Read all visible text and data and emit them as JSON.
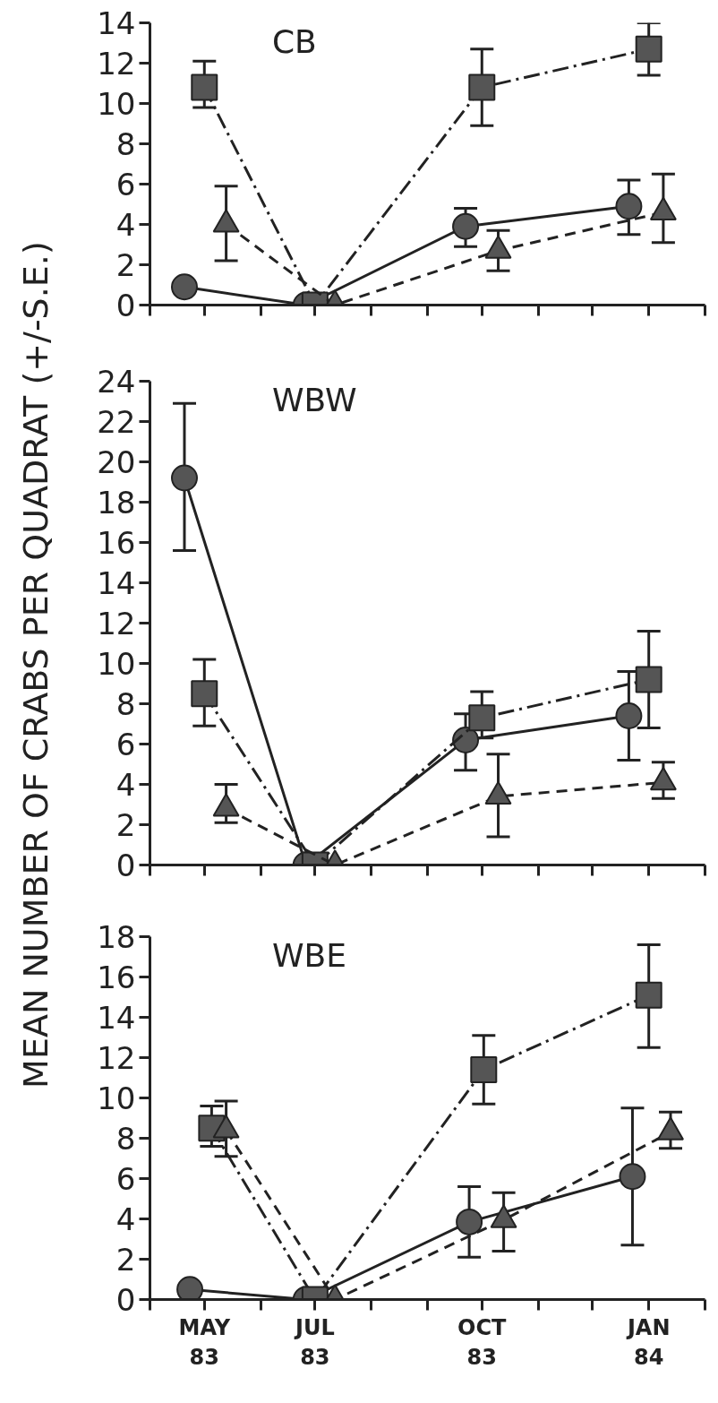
{
  "chart_data": [
    {
      "type": "line",
      "title": "CB",
      "xlim": [
        "1983-04-01",
        "1984-02-01"
      ],
      "ylim": [
        0,
        14
      ],
      "yticks": [
        0,
        2,
        4,
        6,
        8,
        10,
        12,
        14
      ],
      "xticks": [
        {
          "value": "1983-04-01",
          "label": null
        },
        {
          "value": "1983-05-01",
          "label": null
        },
        {
          "value": "1983-06-01",
          "label": null
        },
        {
          "value": "1983-07-01",
          "label": null
        },
        {
          "value": "1983-08-01",
          "label": null
        },
        {
          "value": "1983-09-01",
          "label": null
        },
        {
          "value": "1983-10-01",
          "label": null
        },
        {
          "value": "1983-11-01",
          "label": null
        },
        {
          "value": "1983-12-01",
          "label": null
        },
        {
          "value": "1984-01-01",
          "label": null
        },
        {
          "value": "1984-02-01",
          "label": null
        }
      ],
      "tick_labels": "y",
      "grid": false,
      "series": [
        {
          "color": "#555555",
          "marker": "circle",
          "line_style": "solid",
          "x": [
            "1983-04-20",
            "1983-06-26",
            "1983-09-22",
            "1983-12-21"
          ],
          "values": [
            0.9,
            0,
            3.9,
            4.9
          ],
          "errors": [
            null,
            null,
            [
              2.9,
              4.8
            ],
            [
              3.5,
              6.2
            ]
          ]
        },
        {
          "color": "#555555",
          "marker": "square",
          "line_style": "dashdot",
          "x": [
            "1983-05-01",
            "1983-07-01",
            "1983-10-01",
            "1984-01-01"
          ],
          "values": [
            10.8,
            0,
            10.8,
            12.7
          ],
          "errors": [
            [
              9.8,
              12.1
            ],
            null,
            [
              8.9,
              12.7
            ],
            [
              11.4,
              14.0
            ]
          ]
        },
        {
          "color": "#555555",
          "marker": "triangle",
          "line_style": "dashed",
          "x": [
            "1983-05-13",
            "1983-07-12",
            "1983-10-10",
            "1984-01-09"
          ],
          "values": [
            4.0,
            0,
            2.7,
            4.6
          ],
          "errors": [
            [
              2.2,
              5.9
            ],
            null,
            [
              1.7,
              3.7
            ],
            [
              3.1,
              6.5
            ]
          ]
        }
      ]
    },
    {
      "type": "line",
      "title": "WBW",
      "ylabel": "MEAN NUMBER OF CRABS PER QUADRAT (+/-S.E.)",
      "xlim": [
        "1983-04-01",
        "1984-02-01"
      ],
      "ylim": [
        0,
        24
      ],
      "yticks": [
        0,
        2,
        4,
        6,
        8,
        10,
        12,
        14,
        16,
        18,
        20,
        22,
        24
      ],
      "xticks": [
        {
          "value": "1983-04-01",
          "label": null
        },
        {
          "value": "1983-05-01",
          "label": null
        },
        {
          "value": "1983-06-01",
          "label": null
        },
        {
          "value": "1983-07-01",
          "label": null
        },
        {
          "value": "1983-08-01",
          "label": null
        },
        {
          "value": "1983-09-01",
          "label": null
        },
        {
          "value": "1983-10-01",
          "label": null
        },
        {
          "value": "1983-11-01",
          "label": null
        },
        {
          "value": "1983-12-01",
          "label": null
        },
        {
          "value": "1984-01-01",
          "label": null
        },
        {
          "value": "1984-02-01",
          "label": null
        }
      ],
      "tick_labels": "y",
      "grid": false,
      "series": [
        {
          "color": "#555555",
          "marker": "circle",
          "line_style": "solid",
          "x": [
            "1983-04-20",
            "1983-06-26",
            "1983-09-22",
            "1983-12-21"
          ],
          "values": [
            19.2,
            0,
            6.2,
            7.4
          ],
          "errors": [
            [
              15.6,
              22.9
            ],
            null,
            [
              4.7,
              7.5
            ],
            [
              5.2,
              9.6
            ]
          ]
        },
        {
          "color": "#555555",
          "marker": "square",
          "line_style": "dashdot",
          "x": [
            "1983-05-01",
            "1983-07-01",
            "1983-10-01",
            "1984-01-01"
          ],
          "values": [
            8.5,
            0,
            7.3,
            9.2
          ],
          "errors": [
            [
              6.9,
              10.2
            ],
            null,
            [
              6.3,
              8.6
            ],
            [
              6.8,
              11.6
            ]
          ]
        },
        {
          "color": "#555555",
          "marker": "triangle",
          "line_style": "dashed",
          "x": [
            "1983-05-13",
            "1983-07-12",
            "1983-10-10",
            "1984-01-09"
          ],
          "values": [
            2.8,
            0,
            3.4,
            4.1
          ],
          "errors": [
            [
              2.1,
              4.0
            ],
            null,
            [
              1.4,
              5.5
            ],
            [
              3.3,
              5.1
            ]
          ]
        }
      ]
    },
    {
      "type": "line",
      "title": "WBE",
      "xlim": [
        "1983-04-01",
        "1984-02-01"
      ],
      "ylim": [
        0,
        18
      ],
      "yticks": [
        0,
        2,
        4,
        6,
        8,
        10,
        12,
        14,
        16,
        18
      ],
      "xticks": [
        {
          "value": "1983-04-01",
          "label": null
        },
        {
          "value": "1983-05-01",
          "label": "MAY\n83"
        },
        {
          "value": "1983-06-01",
          "label": null
        },
        {
          "value": "1983-07-01",
          "label": "JUL\n83"
        },
        {
          "value": "1983-08-01",
          "label": null
        },
        {
          "value": "1983-09-01",
          "label": null
        },
        {
          "value": "1983-10-01",
          "label": "OCT\n83"
        },
        {
          "value": "1983-11-01",
          "label": null
        },
        {
          "value": "1983-12-01",
          "label": null
        },
        {
          "value": "1984-01-01",
          "label": "JAN\n84"
        },
        {
          "value": "1984-02-01",
          "label": null
        }
      ],
      "grid": false,
      "series": [
        {
          "color": "#555555",
          "marker": "circle",
          "line_style": "solid",
          "x": [
            "1983-04-23",
            "1983-06-26",
            "1983-09-24",
            "1983-12-23"
          ],
          "values": [
            0.5,
            0,
            3.85,
            6.1
          ],
          "errors": [
            null,
            null,
            [
              2.1,
              5.6
            ],
            [
              2.7,
              9.5
            ]
          ]
        },
        {
          "color": "#555555",
          "marker": "square",
          "line_style": "dashdot",
          "x": [
            "1983-05-05",
            "1983-07-01",
            "1983-10-02",
            "1984-01-01"
          ],
          "values": [
            8.5,
            0,
            11.4,
            15.1
          ],
          "errors": [
            [
              7.6,
              9.6
            ],
            null,
            [
              9.7,
              13.1
            ],
            [
              12.5,
              17.6
            ]
          ]
        },
        {
          "color": "#555555",
          "marker": "triangle",
          "line_style": "dashed",
          "x": [
            "1983-05-13",
            "1983-07-12",
            "1983-10-13",
            "1984-01-13"
          ],
          "values": [
            8.4,
            0,
            3.95,
            8.3
          ],
          "errors": [
            [
              7.1,
              9.85
            ],
            null,
            [
              2.4,
              5.3
            ],
            [
              7.5,
              9.3
            ]
          ]
        }
      ]
    }
  ]
}
